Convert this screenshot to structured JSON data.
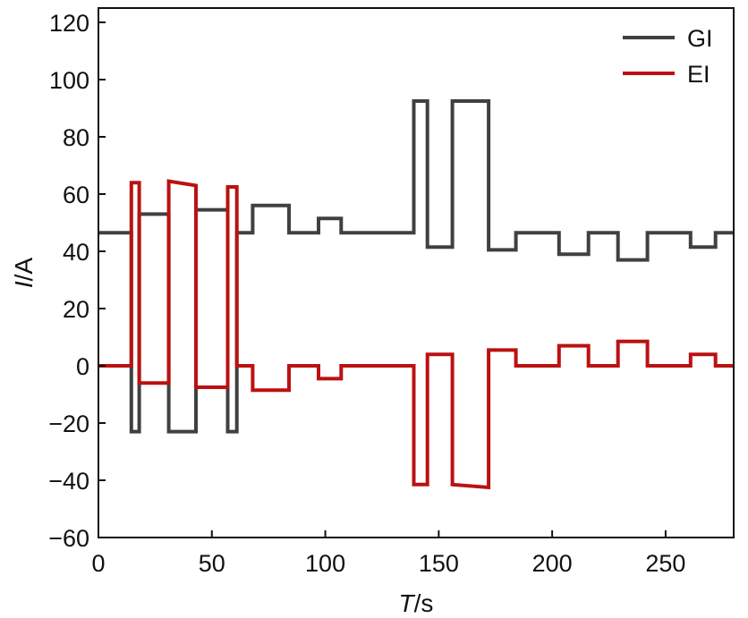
{
  "chart_data": {
    "type": "line",
    "xlabel": {
      "italic": "T",
      "rest": "/s"
    },
    "ylabel": {
      "italic": "I",
      "rest": "/A"
    },
    "xlim": [
      0,
      280
    ],
    "ylim": [
      -60,
      125
    ],
    "xticks": [
      0,
      50,
      100,
      150,
      200,
      250
    ],
    "xtick_labels": [
      "0",
      "50",
      "100",
      "150",
      "200",
      "250"
    ],
    "yticks": [
      -60,
      -40,
      -20,
      0,
      20,
      40,
      60,
      80,
      100,
      120
    ],
    "ytick_labels": [
      "−60",
      "−40",
      "−20",
      "0",
      "20",
      "40",
      "60",
      "80",
      "100",
      "120"
    ],
    "grid": false,
    "legend": "top-right",
    "series": [
      {
        "name": "GI",
        "color": "#404040",
        "points": [
          [
            0,
            46.5
          ],
          [
            14.5,
            46.5
          ],
          [
            14.5,
            -23
          ],
          [
            18,
            -23
          ],
          [
            18,
            53
          ],
          [
            31,
            53
          ],
          [
            31,
            -23
          ],
          [
            43,
            -23
          ],
          [
            43,
            54.5
          ],
          [
            57,
            54.5
          ],
          [
            57,
            -23
          ],
          [
            61,
            -23
          ],
          [
            61,
            46.5
          ],
          [
            68,
            46.5
          ],
          [
            68,
            56
          ],
          [
            84,
            56
          ],
          [
            84,
            46.5
          ],
          [
            97,
            46.5
          ],
          [
            97,
            51.5
          ],
          [
            107,
            51.5
          ],
          [
            107,
            46.5
          ],
          [
            139,
            46.5
          ],
          [
            139,
            92.5
          ],
          [
            145,
            92.5
          ],
          [
            145,
            41.5
          ],
          [
            156,
            41.5
          ],
          [
            156,
            92.5
          ],
          [
            172,
            92.5
          ],
          [
            172,
            40.5
          ],
          [
            184,
            40.5
          ],
          [
            184,
            46.5
          ],
          [
            203,
            46.5
          ],
          [
            203,
            39
          ],
          [
            216,
            39
          ],
          [
            216,
            46.5
          ],
          [
            229,
            46.5
          ],
          [
            229,
            37
          ],
          [
            242,
            37
          ],
          [
            242,
            46.5
          ],
          [
            261,
            46.5
          ],
          [
            261,
            41.5
          ],
          [
            272,
            41.5
          ],
          [
            272,
            46.5
          ],
          [
            280,
            46.5
          ]
        ]
      },
      {
        "name": "EI",
        "color": "#bb1111",
        "points": [
          [
            0,
            0
          ],
          [
            14.5,
            0
          ],
          [
            14.5,
            64
          ],
          [
            18,
            64
          ],
          [
            18,
            -6
          ],
          [
            31,
            -6
          ],
          [
            31,
            64.5
          ],
          [
            43,
            63
          ],
          [
            43,
            -7.5
          ],
          [
            57,
            -7.5
          ],
          [
            57,
            62.5
          ],
          [
            61,
            62.5
          ],
          [
            61,
            0
          ],
          [
            68,
            0
          ],
          [
            68,
            -8.5
          ],
          [
            84,
            -8.5
          ],
          [
            84,
            0
          ],
          [
            97,
            0
          ],
          [
            97,
            -4.5
          ],
          [
            107,
            -4.5
          ],
          [
            107,
            0
          ],
          [
            139,
            0
          ],
          [
            139,
            -41.5
          ],
          [
            145,
            -41.5
          ],
          [
            145,
            4
          ],
          [
            156,
            4
          ],
          [
            156,
            -41.5
          ],
          [
            172,
            -42.5
          ],
          [
            172,
            5.5
          ],
          [
            184,
            5.5
          ],
          [
            184,
            0
          ],
          [
            203,
            0
          ],
          [
            203,
            7
          ],
          [
            216,
            7
          ],
          [
            216,
            0
          ],
          [
            229,
            0
          ],
          [
            229,
            8.5
          ],
          [
            242,
            8.5
          ],
          [
            242,
            0
          ],
          [
            261,
            0
          ],
          [
            261,
            4
          ],
          [
            272,
            4
          ],
          [
            272,
            0
          ],
          [
            280,
            0
          ]
        ]
      }
    ]
  }
}
